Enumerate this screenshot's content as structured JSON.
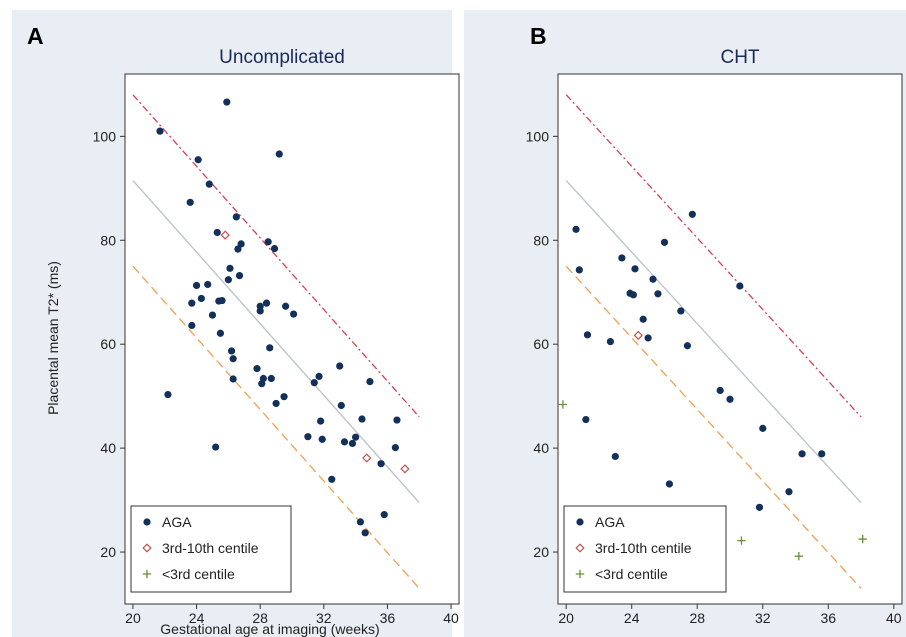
{
  "colors": {
    "panel_bg": "#e8eef3",
    "plot_bg": "#ffffff",
    "aga": "#13305a",
    "centile_3_10": "#c0504d",
    "below_3": "#6b8e3a",
    "upper_line": "#d4405a",
    "mid_line": "#b8c2c8",
    "lower_line": "#f0a050"
  },
  "chart_data": [
    {
      "type": "scatter",
      "panel_letter": "A",
      "title": "Uncomplicated",
      "xlabel": "Gestational age at imaging (weeks)",
      "ylabel": "Placental mean T2* (ms)",
      "xlim": [
        19.5,
        40.5
      ],
      "ylim": [
        10,
        112
      ],
      "x_ticks": [
        20,
        24,
        28,
        32,
        36,
        40
      ],
      "y_ticks": [
        20,
        40,
        60,
        80,
        100
      ],
      "grid": false,
      "legend_position": "bottom-left",
      "reference_lines": [
        {
          "name": "upper",
          "style": "dash-dot",
          "x": [
            20,
            38
          ],
          "y": [
            108,
            46
          ]
        },
        {
          "name": "mid",
          "style": "solid",
          "x": [
            20,
            38
          ],
          "y": [
            91.5,
            29.5
          ]
        },
        {
          "name": "lower",
          "style": "dashed",
          "x": [
            20,
            38
          ],
          "y": [
            75,
            13
          ]
        }
      ],
      "series": [
        {
          "name": "AGA",
          "marker": "filled-circle",
          "x": [
            21.7,
            22.2,
            23.6,
            23.7,
            23.7,
            24.0,
            24.1,
            24.3,
            24.7,
            24.8,
            25.0,
            25.2,
            25.3,
            25.4,
            25.5,
            25.6,
            25.9,
            26.0,
            26.1,
            26.2,
            26.3,
            26.3,
            26.5,
            26.6,
            26.7,
            26.8,
            27.8,
            28.0,
            28.0,
            28.1,
            28.2,
            28.4,
            28.5,
            28.6,
            28.7,
            28.9,
            29.0,
            29.2,
            29.5,
            29.6,
            30.1,
            31.0,
            31.4,
            31.7,
            31.8,
            31.9,
            32.5,
            33.0,
            33.1,
            33.3,
            33.8,
            34.0,
            34.3,
            34.4,
            34.6,
            34.9,
            35.6,
            35.8,
            36.5,
            36.6
          ],
          "y": [
            101,
            50.3,
            87.3,
            67.9,
            63.6,
            71.3,
            95.5,
            68.8,
            71.5,
            90.8,
            65.6,
            40.2,
            81.5,
            68.3,
            62.1,
            68.4,
            106.6,
            72.4,
            74.6,
            58.7,
            53.3,
            57.2,
            84.5,
            78.3,
            73.2,
            79.3,
            55.3,
            67.3,
            66.4,
            52.4,
            53.4,
            67.9,
            79.7,
            59.3,
            53.4,
            78.4,
            48.6,
            96.6,
            49.9,
            67.3,
            65.8,
            42.2,
            52.6,
            53.8,
            45.2,
            41.7,
            34.0,
            55.8,
            48.2,
            41.2,
            40.9,
            42.1,
            25.8,
            45.6,
            23.7,
            52.8,
            37.0,
            27.2,
            40.1,
            45.4
          ]
        },
        {
          "name": "3rd-10th centile",
          "marker": "hollow-diamond",
          "x": [
            25.8,
            34.7,
            37.1
          ],
          "y": [
            81.0,
            38.1,
            36.0
          ]
        },
        {
          "name": "<3rd centile",
          "marker": "plus",
          "x": [],
          "y": []
        }
      ]
    },
    {
      "type": "scatter",
      "panel_letter": "B",
      "title": "CHT",
      "xlabel": "",
      "ylabel": "",
      "xlim": [
        19.5,
        40.5
      ],
      "ylim": [
        10,
        112
      ],
      "x_ticks": [
        20,
        24,
        28,
        32,
        36,
        40
      ],
      "y_ticks": [
        20,
        40,
        60,
        80,
        100
      ],
      "grid": false,
      "legend_position": "bottom-left",
      "reference_lines": [
        {
          "name": "upper",
          "style": "dash-dot",
          "x": [
            20,
            38
          ],
          "y": [
            108,
            46
          ]
        },
        {
          "name": "mid",
          "style": "solid",
          "x": [
            20,
            38
          ],
          "y": [
            91.5,
            29.5
          ]
        },
        {
          "name": "lower",
          "style": "dashed",
          "x": [
            20,
            38
          ],
          "y": [
            75,
            13
          ]
        }
      ],
      "series": [
        {
          "name": "AGA",
          "marker": "filled-circle",
          "x": [
            20.6,
            20.8,
            21.2,
            21.3,
            22.7,
            23.0,
            23.4,
            23.9,
            24.1,
            24.2,
            24.7,
            25.0,
            25.3,
            25.6,
            26.0,
            26.3,
            27.0,
            27.4,
            27.7,
            29.4,
            30.0,
            30.6,
            31.8,
            32.0,
            33.6,
            34.4,
            35.6
          ],
          "y": [
            82.1,
            74.3,
            45.5,
            61.8,
            60.5,
            38.4,
            76.6,
            69.8,
            69.5,
            74.5,
            64.8,
            61.2,
            72.5,
            69.7,
            79.6,
            33.1,
            66.4,
            59.7,
            85.0,
            51.1,
            49.4,
            71.2,
            28.6,
            43.8,
            31.6,
            38.9,
            38.9
          ]
        },
        {
          "name": "3rd-10th centile",
          "marker": "hollow-diamond",
          "x": [
            24.4
          ],
          "y": [
            61.7
          ]
        },
        {
          "name": "<3rd centile",
          "marker": "plus",
          "x": [
            19.8,
            30.7,
            34.2,
            38.1
          ],
          "y": [
            48.4,
            22.2,
            19.2,
            22.5
          ]
        }
      ]
    }
  ]
}
